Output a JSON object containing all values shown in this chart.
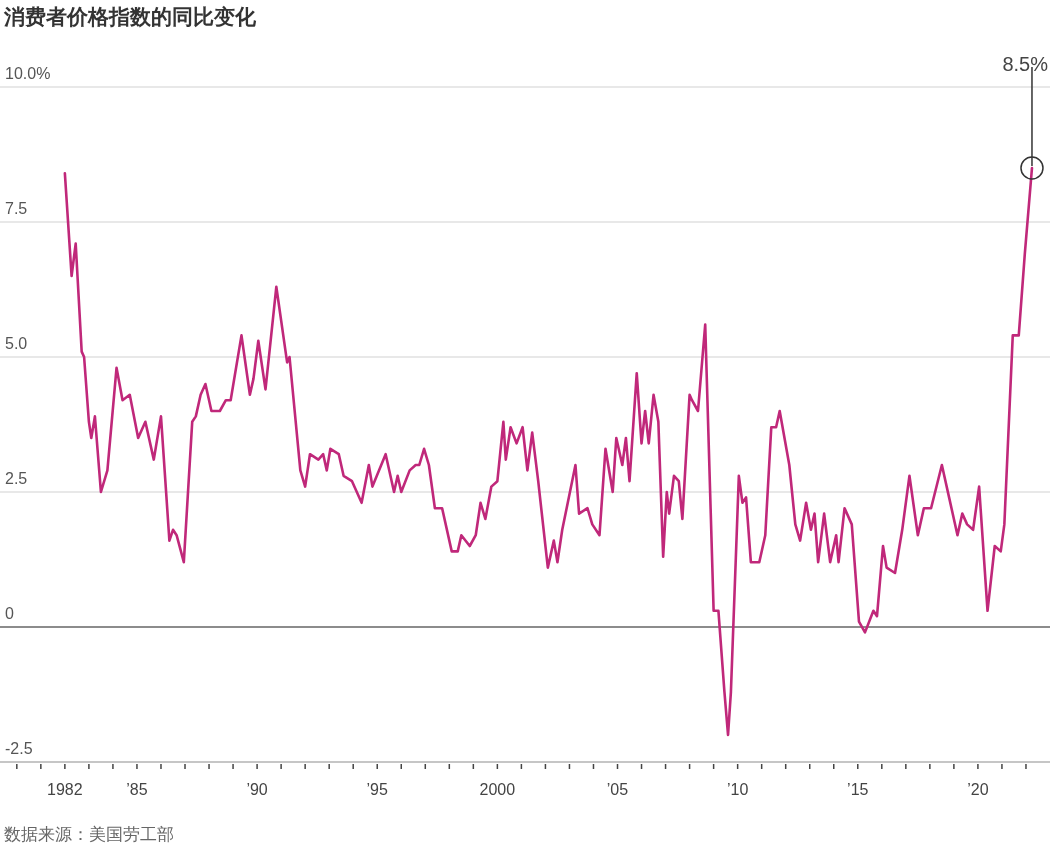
{
  "chart_data": {
    "type": "line",
    "title": "消费者价格指数的同比变化",
    "annotations": [
      "数据来源：美国劳工部",
      {
        "text": "8.5%",
        "x": 2022.25,
        "y": 8.5
      }
    ],
    "x": [
      1982.0,
      1982.28,
      1982.45,
      1982.7,
      1982.8,
      1983.0,
      1983.1,
      1983.25,
      1983.5,
      1983.77,
      1984.15,
      1984.4,
      1984.7,
      1985.05,
      1985.35,
      1985.7,
      1986.0,
      1986.35,
      1986.5,
      1986.65,
      1986.95,
      1987.3,
      1987.45,
      1987.65,
      1987.85,
      1988.1,
      1988.45,
      1988.7,
      1988.9,
      1989.35,
      1989.7,
      1989.85,
      1990.05,
      1990.35,
      1990.8,
      1991.25,
      1991.35,
      1991.8,
      1992.0,
      1992.2,
      1992.55,
      1992.75,
      1992.9,
      1993.05,
      1993.4,
      1993.6,
      1993.95,
      1994.35,
      1994.65,
      1994.8,
      1995.35,
      1995.7,
      1995.85,
      1996.0,
      1996.35,
      1996.6,
      1996.75,
      1996.95,
      1997.15,
      1997.4,
      1997.7,
      1998.1,
      1998.35,
      1998.5,
      1998.85,
      1999.1,
      1999.3,
      1999.5,
      1999.75,
      2000.0,
      2000.25,
      2000.35,
      2000.55,
      2000.8,
      2001.05,
      2001.25,
      2001.45,
      2001.7,
      2002.1,
      2002.35,
      2002.5,
      2002.7,
      2003.25,
      2003.4,
      2003.75,
      2003.95,
      2004.25,
      2004.5,
      2004.8,
      2004.95,
      2005.2,
      2005.35,
      2005.5,
      2005.8,
      2006.0,
      2006.15,
      2006.3,
      2006.5,
      2006.7,
      2006.9,
      2007.05,
      2007.15,
      2007.35,
      2007.55,
      2007.7,
      2008.0,
      2008.1,
      2008.35,
      2008.65,
      2009.0,
      2009.2,
      2009.45,
      2009.6,
      2009.72,
      2010.05,
      2010.2,
      2010.35,
      2010.55,
      2010.9,
      2011.15,
      2011.4,
      2011.6,
      2011.75,
      2012.15,
      2012.4,
      2012.6,
      2012.85,
      2013.05,
      2013.2,
      2013.35,
      2013.6,
      2013.85,
      2014.1,
      2014.2,
      2014.45,
      2014.75,
      2015.05,
      2015.3,
      2015.65,
      2015.8,
      2016.05,
      2016.2,
      2016.55,
      2016.85,
      2017.15,
      2017.5,
      2017.75,
      2018.05,
      2018.5,
      2018.8,
      2019.15,
      2019.35,
      2019.55,
      2019.8,
      2020.05,
      2020.4,
      2020.7,
      2020.95,
      2021.1,
      2021.45,
      2021.7,
      2021.95,
      2022.25
    ],
    "series": [
      {
        "color": "#c0287a",
        "values": [
          8.4,
          6.5,
          7.1,
          5.1,
          5.0,
          3.8,
          3.5,
          3.9,
          2.5,
          2.9,
          4.8,
          4.2,
          4.3,
          3.5,
          3.8,
          3.1,
          3.9,
          1.6,
          1.8,
          1.7,
          1.2,
          3.8,
          3.9,
          4.3,
          4.5,
          4.0,
          4.0,
          4.2,
          4.2,
          5.4,
          4.3,
          4.6,
          5.3,
          4.4,
          6.3,
          4.9,
          5.0,
          2.9,
          2.6,
          3.2,
          3.1,
          3.2,
          2.9,
          3.3,
          3.2,
          2.8,
          2.7,
          2.3,
          3.0,
          2.6,
          3.2,
          2.5,
          2.8,
          2.5,
          2.9,
          3.0,
          3.0,
          3.3,
          3.0,
          2.2,
          2.2,
          1.4,
          1.4,
          1.7,
          1.5,
          1.7,
          2.3,
          2.0,
          2.6,
          2.7,
          3.8,
          3.1,
          3.7,
          3.4,
          3.7,
          2.9,
          3.6,
          2.7,
          1.1,
          1.6,
          1.2,
          1.8,
          3.0,
          2.1,
          2.2,
          1.9,
          1.7,
          3.3,
          2.5,
          3.5,
          3.0,
          3.5,
          2.7,
          4.7,
          3.4,
          4.0,
          3.4,
          4.3,
          3.8,
          1.3,
          2.5,
          2.1,
          2.8,
          2.7,
          2.0,
          4.3,
          4.2,
          4.0,
          5.6,
          0.3,
          0.3,
          -1.2,
          -2.0,
          -1.2,
          2.8,
          2.3,
          2.4,
          1.2,
          1.2,
          1.7,
          3.7,
          3.7,
          4.0,
          3.0,
          1.9,
          1.6,
          2.3,
          1.8,
          2.1,
          1.2,
          2.1,
          1.2,
          1.7,
          1.2,
          2.2,
          1.9,
          0.1,
          -0.1,
          0.3,
          0.2,
          1.5,
          1.1,
          1.0,
          1.8,
          2.8,
          1.7,
          2.2,
          2.2,
          3.0,
          2.4,
          1.7,
          2.1,
          1.9,
          1.8,
          2.6,
          0.3,
          1.5,
          1.4,
          1.9,
          5.4,
          5.4,
          6.9,
          8.5
        ]
      }
    ],
    "xlim": [
      1979.3,
      2023.0
    ],
    "xticks": [
      {
        "value": 1980,
        "label": null
      },
      {
        "value": 1981,
        "label": null
      },
      1982,
      {
        "value": 1983,
        "label": null
      },
      {
        "value": 1984,
        "label": null
      },
      {
        "value": 1985,
        "label": "’85"
      },
      {
        "value": 1986,
        "label": null
      },
      {
        "value": 1987,
        "label": null
      },
      {
        "value": 1988,
        "label": null
      },
      {
        "value": 1989,
        "label": null
      },
      {
        "value": 1990,
        "label": "’90"
      },
      {
        "value": 1991,
        "label": null
      },
      {
        "value": 1992,
        "label": null
      },
      {
        "value": 1993,
        "label": null
      },
      {
        "value": 1994,
        "label": null
      },
      {
        "value": 1995,
        "label": "’95"
      },
      {
        "value": 1996,
        "label": null
      },
      {
        "value": 1997,
        "label": null
      },
      {
        "value": 1998,
        "label": null
      },
      {
        "value": 1999,
        "label": null
      },
      2000,
      {
        "value": 2001,
        "label": null
      },
      {
        "value": 2002,
        "label": null
      },
      {
        "value": 2003,
        "label": null
      },
      {
        "value": 2004,
        "label": null
      },
      {
        "value": 2005,
        "label": "’05"
      },
      {
        "value": 2006,
        "label": null
      },
      {
        "value": 2007,
        "label": null
      },
      {
        "value": 2008,
        "label": null
      },
      {
        "value": 2009,
        "label": null
      },
      {
        "value": 2010,
        "label": "’10"
      },
      {
        "value": 2011,
        "label": null
      },
      {
        "value": 2012,
        "label": null
      },
      {
        "value": 2013,
        "label": null
      },
      {
        "value": 2014,
        "label": null
      },
      {
        "value": 2015,
        "label": "’15"
      },
      {
        "value": 2016,
        "label": null
      },
      {
        "value": 2017,
        "label": null
      },
      {
        "value": 2018,
        "label": null
      },
      {
        "value": 2019,
        "label": null
      },
      {
        "value": 2020,
        "label": "’20"
      },
      {
        "value": 2021,
        "label": null
      },
      {
        "value": 2022,
        "label": null
      }
    ],
    "ylim": [
      -2.5,
      10.0
    ],
    "yticks": [
      -2.5,
      0,
      2.5,
      {
        "value": 5,
        "label": "5.0"
      },
      7.5,
      {
        "value": 10,
        "label": "10.0%"
      }
    ],
    "ref_lines": [
      {
        "axis": "y",
        "value": 0,
        "color": "#8c8c8c"
      }
    ],
    "grid": "y"
  }
}
